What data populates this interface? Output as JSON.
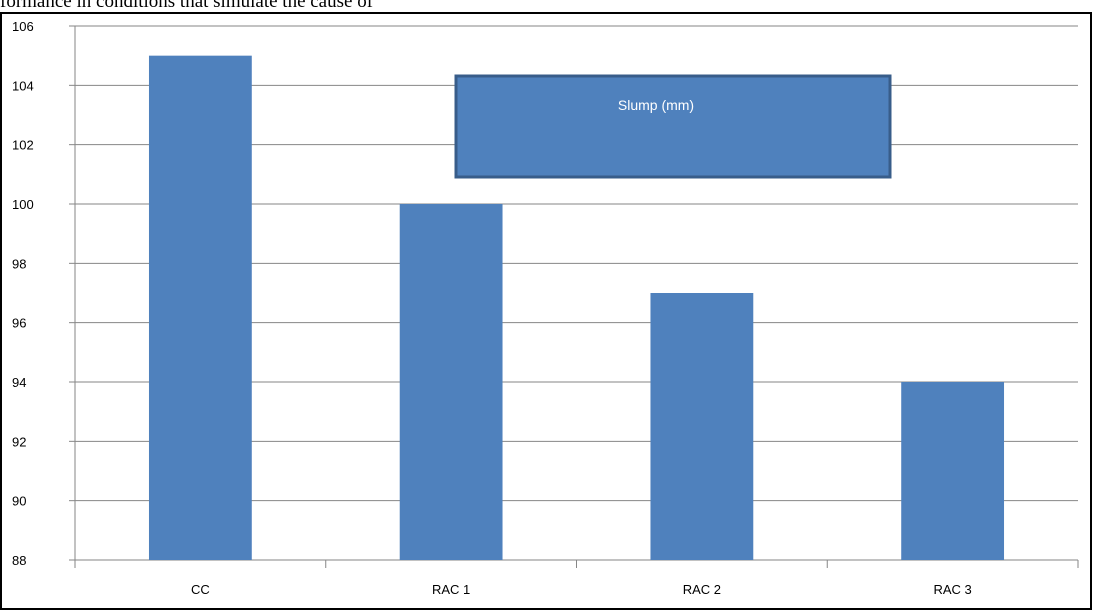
{
  "page": {
    "top_text": "formance in conditions that simulate the cause of"
  },
  "chart_data": {
    "type": "bar",
    "title": "Slump (mm)",
    "categories": [
      "CC",
      "RAC 1",
      "RAC 2",
      "RAC 3"
    ],
    "values": [
      105,
      100,
      97,
      94
    ],
    "ylim": [
      88,
      106
    ],
    "yticks": [
      88,
      90,
      92,
      94,
      96,
      98,
      100,
      102,
      104,
      106
    ],
    "grid": true,
    "legend": "none",
    "colors": {
      "bar": "#4f81bd",
      "title_box": "#4f81bd",
      "title_box_border": "#385d8a",
      "grid": "#868686"
    }
  }
}
